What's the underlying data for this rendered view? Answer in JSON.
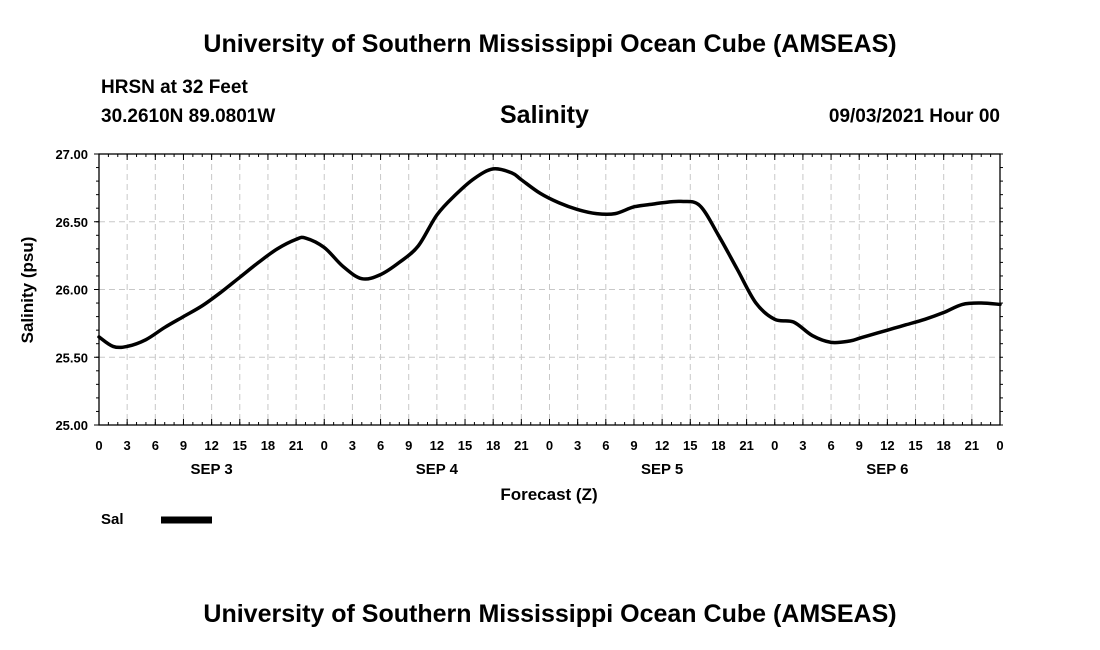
{
  "header": {
    "title_top": "University of Southern Mississippi Ocean Cube (AMSEAS)",
    "title_bottom": "University of Southern Mississippi Ocean Cube (AMSEAS)",
    "station": "HRSN at 32 Feet",
    "coords": "30.2610N  89.0801W",
    "datetime": "09/03/2021 Hour 00"
  },
  "chart_data": {
    "type": "line",
    "title": "Salinity",
    "xlabel": "Forecast (Z)",
    "ylabel": "Salinity (psu)",
    "ylim": [
      25.0,
      27.0
    ],
    "xlim": [
      0,
      96
    ],
    "x_unit": "forecast hour",
    "yticks": [
      "25.00",
      "25.50",
      "26.00",
      "26.50",
      "27.00"
    ],
    "xtick_labels": [
      "0",
      "3",
      "6",
      "9",
      "12",
      "15",
      "18",
      "21",
      "0",
      "3",
      "6",
      "9",
      "12",
      "15",
      "18",
      "21",
      "0",
      "3",
      "6",
      "9",
      "12",
      "15",
      "18",
      "21",
      "0",
      "3",
      "6",
      "9",
      "12",
      "15",
      "18",
      "21",
      "0"
    ],
    "day_labels": [
      "SEP 3",
      "SEP 4",
      "SEP 5",
      "SEP 6"
    ],
    "grid": true,
    "legend": {
      "placement": "bottom-left",
      "label": "Sal"
    },
    "series": [
      {
        "name": "Sal",
        "color": "#000000",
        "x": [
          0,
          1.5,
          3,
          5,
          7,
          9,
          11,
          13,
          15,
          17,
          19,
          21,
          22,
          24,
          26,
          28,
          30,
          32,
          34,
          36,
          38,
          40,
          42,
          44,
          45,
          47,
          49,
          51,
          53,
          55,
          57,
          59,
          60,
          62,
          64,
          66,
          68,
          70,
          72,
          74,
          76,
          78,
          80,
          81,
          82,
          84,
          85,
          86,
          88,
          90,
          92,
          94,
          96
        ],
        "y": [
          25.65,
          25.58,
          25.58,
          25.63,
          25.72,
          25.8,
          25.88,
          25.98,
          26.09,
          26.2,
          26.3,
          26.37,
          26.38,
          26.31,
          26.17,
          26.08,
          26.11,
          26.2,
          26.32,
          26.55,
          26.7,
          26.82,
          26.89,
          26.86,
          26.81,
          26.71,
          26.64,
          26.59,
          26.56,
          26.56,
          26.61,
          26.63,
          26.64,
          26.65,
          26.62,
          26.4,
          26.15,
          25.9,
          25.78,
          25.76,
          25.66,
          25.61,
          25.62,
          25.64,
          25.66,
          25.7,
          25.72,
          25.74,
          25.78,
          25.83,
          25.89,
          25.9,
          25.89
        ]
      }
    ]
  }
}
